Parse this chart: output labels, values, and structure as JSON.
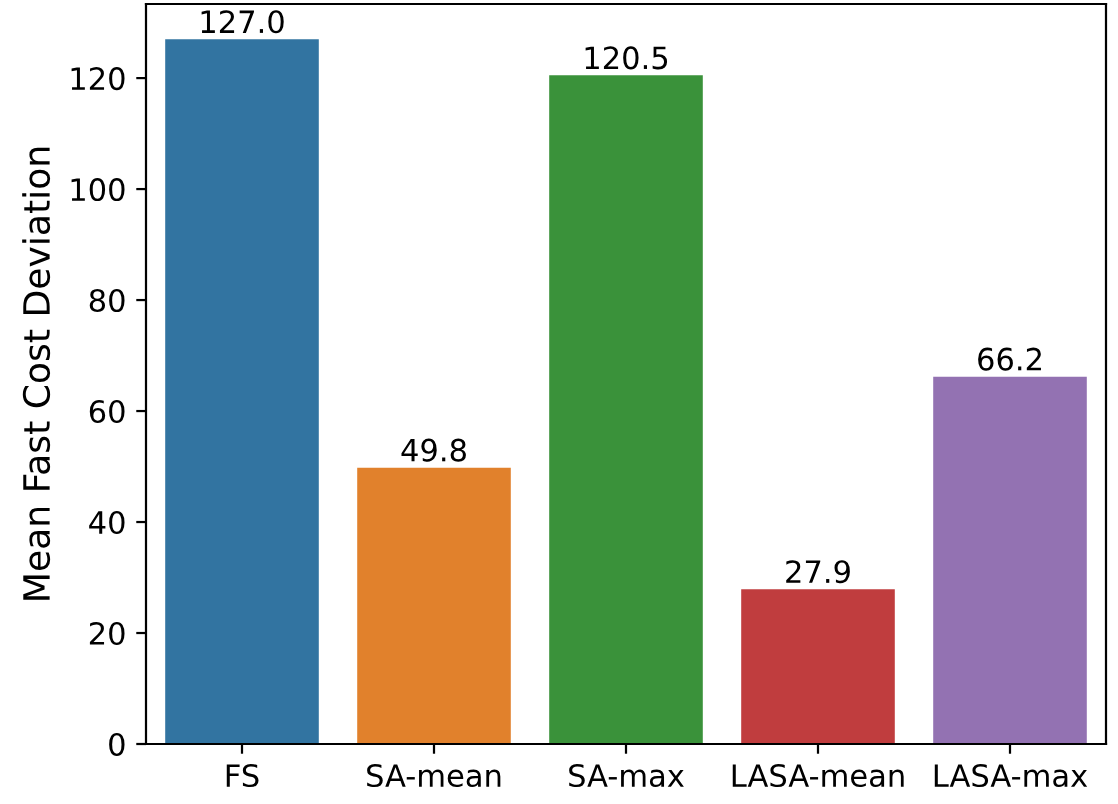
{
  "chart_data": {
    "type": "bar",
    "ylabel": "Mean Fast Cost Deviation",
    "categories": [
      "FS",
      "SA-mean",
      "SA-max",
      "LASA-mean",
      "LASA-max"
    ],
    "values": [
      127.0,
      49.8,
      120.5,
      27.9,
      66.2
    ],
    "value_labels": [
      "127.0",
      "49.8",
      "120.5",
      "27.9",
      "66.2"
    ],
    "colors": [
      "#3274a1",
      "#e1812c",
      "#3a923a",
      "#c03d3e",
      "#9372b2"
    ],
    "ylim": [
      0,
      133.35
    ],
    "yticks": [
      0,
      20,
      40,
      60,
      80,
      100,
      120
    ],
    "grid": false
  }
}
